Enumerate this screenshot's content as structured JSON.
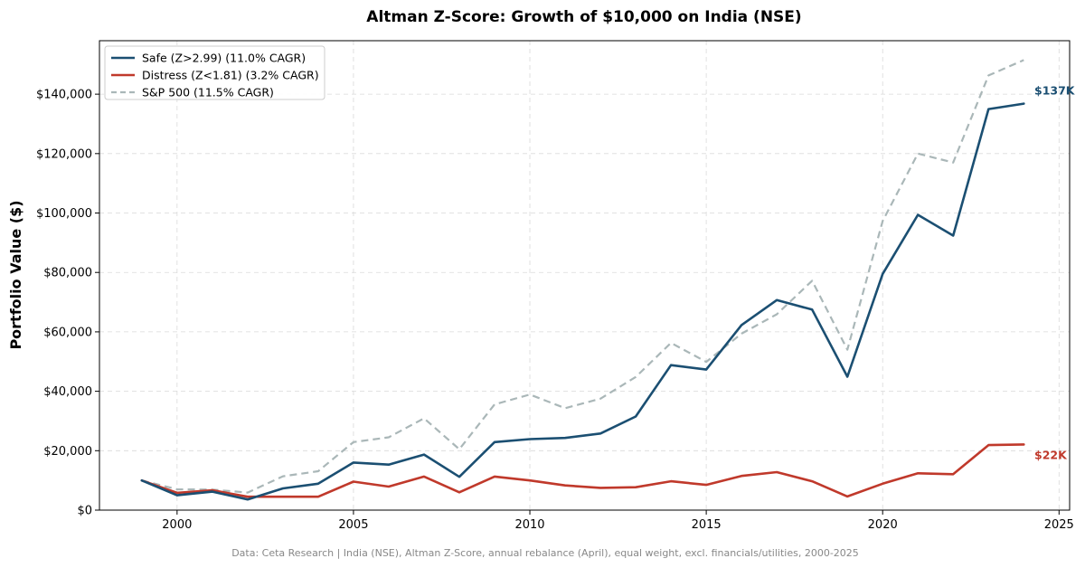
{
  "chart_data": {
    "type": "line",
    "title": "Altman Z-Score: Growth of $10,000 on India (NSE)",
    "ylabel": "Portfolio Value ($)",
    "xlabel": "",
    "xlim": [
      1997.8,
      2025.3
    ],
    "ylim": [
      0,
      158000
    ],
    "x_ticks": [
      2000,
      2005,
      2010,
      2015,
      2020,
      2025
    ],
    "y_ticks": [
      0,
      20000,
      40000,
      60000,
      80000,
      100000,
      120000,
      140000
    ],
    "y_tick_labels": [
      "$0",
      "$20,000",
      "$40,000",
      "$60,000",
      "$80,000",
      "$100,000",
      "$120,000",
      "$140,000"
    ],
    "grid": true,
    "legend_position": "top-left",
    "x": [
      1999,
      2000,
      2001,
      2002,
      2003,
      2004,
      2005,
      2006,
      2007,
      2008,
      2009,
      2010,
      2011,
      2012,
      2013,
      2014,
      2015,
      2016,
      2017,
      2018,
      2019,
      2020,
      2021,
      2022,
      2023,
      2024
    ],
    "series": [
      {
        "name": "Safe (Z>2.99) (11.0% CAGR)",
        "color": "#1b4f72",
        "style": "solid",
        "values": [
          10000,
          5000,
          6200,
          3600,
          7300,
          8900,
          16000,
          15300,
          18700,
          11200,
          22900,
          23900,
          24300,
          25800,
          31500,
          48800,
          47300,
          62300,
          70700,
          67500,
          44900,
          79500,
          99400,
          92400,
          135000,
          136800
        ],
        "end_label": "$137K"
      },
      {
        "name": "Distress (Z<1.81) (3.2% CAGR)",
        "color": "#c0392b",
        "style": "solid",
        "values": [
          10000,
          5800,
          6700,
          4500,
          4500,
          4500,
          9600,
          7900,
          11300,
          6000,
          11300,
          10000,
          8300,
          7500,
          7700,
          9700,
          8500,
          11500,
          12800,
          9700,
          4600,
          8900,
          12400,
          12100,
          21900,
          22100
        ],
        "end_label": "$22K"
      },
      {
        "name": "S&P 500 (11.5% CAGR)",
        "color": "#aab7b8",
        "style": "dashed",
        "values": [
          10000,
          7000,
          6900,
          5900,
          11400,
          13100,
          22900,
          24500,
          30900,
          20500,
          35600,
          38900,
          34300,
          37500,
          44800,
          56300,
          49900,
          59400,
          65900,
          77200,
          54000,
          97300,
          120000,
          117000,
          146300,
          151500
        ]
      }
    ]
  },
  "footer": "Data: Ceta Research | India (NSE), Altman Z-Score, annual rebalance (April), equal weight, excl. financials/utilities, 2000-2025"
}
